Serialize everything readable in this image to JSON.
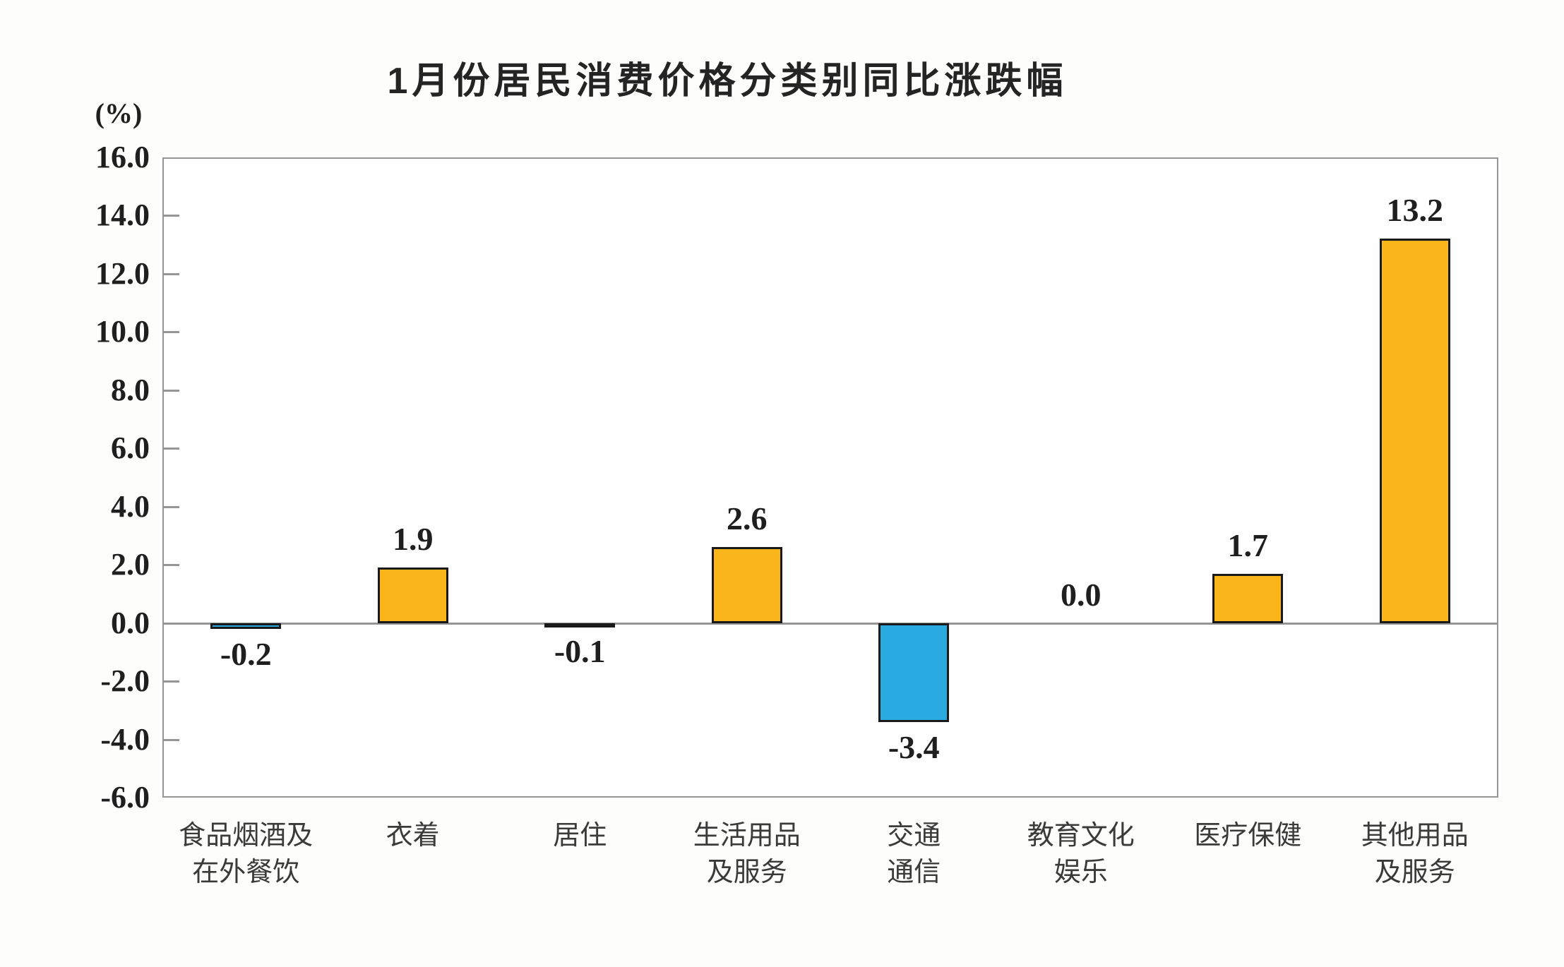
{
  "chart_data": {
    "type": "bar",
    "title": "1月份居民消费价格分类别同比涨跌幅",
    "unit_label": "(%)",
    "categories": [
      "食品烟酒及\n在外餐饮",
      "衣着",
      "居住",
      "生活用品\n及服务",
      "交通\n通信",
      "教育文化\n娱乐",
      "医疗保健",
      "其他用品\n及服务"
    ],
    "values": [
      -0.2,
      1.9,
      -0.1,
      2.6,
      -3.4,
      0.0,
      1.7,
      13.2
    ],
    "value_labels": [
      "-0.2",
      "1.9",
      "-0.1",
      "2.6",
      "-3.4",
      "0.0",
      "1.7",
      "13.2"
    ],
    "ylim": [
      -6.0,
      16.0
    ],
    "ytick_step": 2.0,
    "ytick_labels": [
      "16.0",
      "14.0",
      "12.0",
      "10.0",
      "8.0",
      "6.0",
      "4.0",
      "2.0",
      "0.0",
      "-2.0",
      "-4.0",
      "-6.0"
    ],
    "grid": false,
    "legend_position": "none",
    "colors": {
      "positive_bar": "#FAB51B",
      "negative_bar": "#29ABE2",
      "bar_border": "#1A1A1A",
      "axis": "#969696",
      "label_text": "#1F1F1F",
      "category_text": "#3A3A3A"
    }
  }
}
